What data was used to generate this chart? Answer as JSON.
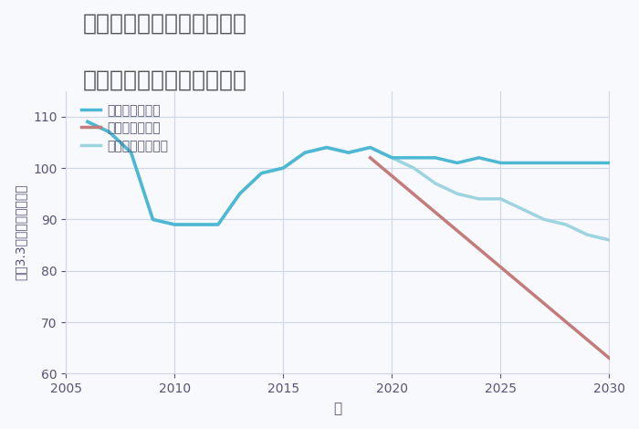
{
  "title_line1": "奈良県磯城郡川西町保田の",
  "title_line2": "中古マンションの価格推移",
  "xlabel": "年",
  "ylabel": "平（3.3㎡）単価（万円）",
  "xlim": [
    2005,
    2030
  ],
  "ylim": [
    60,
    115
  ],
  "yticks": [
    60,
    70,
    80,
    90,
    100,
    110
  ],
  "xticks": [
    2005,
    2010,
    2015,
    2020,
    2025,
    2030
  ],
  "good_scenario": {
    "label": "グッドシナリオ",
    "color": "#4db8d4",
    "linewidth": 2.5,
    "x": [
      2006,
      2007,
      2008,
      2009,
      2010,
      2011,
      2012,
      2013,
      2014,
      2015,
      2016,
      2017,
      2018,
      2019,
      2020,
      2021,
      2022,
      2023,
      2024,
      2025,
      2026,
      2027,
      2028,
      2029,
      2030
    ],
    "y": [
      109,
      107,
      103,
      90,
      89,
      89,
      89,
      95,
      99,
      100,
      103,
      104,
      103,
      104,
      102,
      102,
      102,
      101,
      102,
      101,
      101,
      101,
      101,
      101,
      101
    ]
  },
  "bad_scenario": {
    "label": "バッドシナリオ",
    "color": "#c47b7b",
    "linewidth": 2.5,
    "x": [
      2019,
      2030
    ],
    "y": [
      102,
      63
    ]
  },
  "normal_scenario": {
    "label": "ノーマルシナリオ",
    "color": "#9dd4e0",
    "linewidth": 2.5,
    "x": [
      2006,
      2007,
      2008,
      2009,
      2010,
      2011,
      2012,
      2013,
      2014,
      2015,
      2016,
      2017,
      2018,
      2019,
      2020,
      2021,
      2022,
      2023,
      2024,
      2025,
      2026,
      2027,
      2028,
      2029,
      2030
    ],
    "y": [
      109,
      107,
      103,
      90,
      89,
      89,
      89,
      95,
      99,
      100,
      103,
      104,
      103,
      104,
      102,
      100,
      97,
      95,
      94,
      94,
      92,
      90,
      89,
      87,
      86
    ]
  },
  "background_color": "#f7f9fc",
  "grid_color": "#d0d8e8",
  "title_color": "#555555",
  "legend_text_color": "#555577"
}
